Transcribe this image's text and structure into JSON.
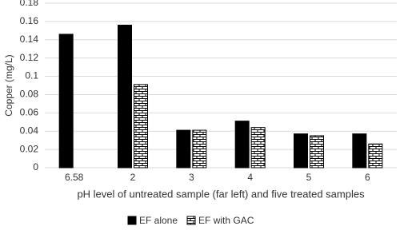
{
  "chart_data": {
    "type": "bar",
    "y_label": "Copper (mg/L)",
    "x_label": "pH level of untreated sample (far left) and five treated samples",
    "categories": [
      "6.58",
      "2",
      "3",
      "4",
      "5",
      "6"
    ],
    "series": [
      {
        "name": "EF alone",
        "color": "#000000",
        "values": [
          0.146,
          0.156,
          0.041,
          0.051,
          0.037,
          0.037
        ]
      },
      {
        "name": "EF with GAC",
        "color": "brick",
        "values": [
          null,
          0.091,
          0.041,
          0.044,
          0.035,
          0.026
        ]
      }
    ],
    "ylim": [
      0,
      0.18
    ],
    "yticks": [
      0,
      0.02,
      0.04,
      0.06,
      0.08,
      0.1,
      0.12,
      0.14,
      0.16,
      0.18
    ],
    "grid": true,
    "legend": "bottom"
  }
}
